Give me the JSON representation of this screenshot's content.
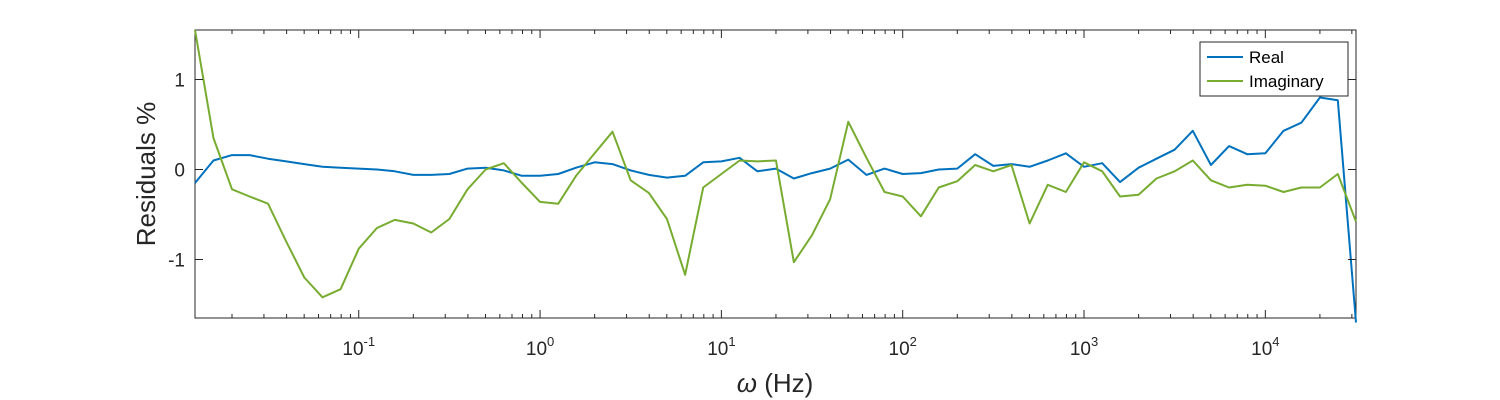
{
  "chart_data": {
    "type": "line",
    "xscale": "log",
    "xlim": [
      0.0125,
      31623
    ],
    "ylim": [
      -1.65,
      1.55
    ],
    "xlabel": "ω (Hz)",
    "xlabel_symbol": "ω",
    "xlabel_unit": "(Hz)",
    "ylabel": "Residuals %",
    "grid": false,
    "legend_position": "top-right",
    "x_ticks": [
      {
        "value": 0.1,
        "base": "10",
        "exp": "-1"
      },
      {
        "value": 1,
        "base": "10",
        "exp": "0"
      },
      {
        "value": 10,
        "base": "10",
        "exp": "1"
      },
      {
        "value": 100,
        "base": "10",
        "exp": "2"
      },
      {
        "value": 1000,
        "base": "10",
        "exp": "3"
      },
      {
        "value": 10000,
        "base": "10",
        "exp": "4"
      }
    ],
    "y_ticks": [
      {
        "value": 1,
        "label": "1"
      },
      {
        "value": 0,
        "label": "0"
      },
      {
        "value": -1,
        "label": "-1"
      }
    ],
    "series": [
      {
        "name": "Real",
        "color": "#0072BD",
        "x": [
          0.0125,
          0.0158,
          0.02,
          0.025,
          0.0316,
          0.0398,
          0.0501,
          0.0631,
          0.0794,
          0.1,
          0.126,
          0.158,
          0.2,
          0.251,
          0.316,
          0.398,
          0.501,
          0.631,
          0.794,
          1,
          1.26,
          1.58,
          2,
          2.51,
          3.16,
          3.98,
          5.01,
          6.31,
          7.94,
          10,
          12.6,
          15.8,
          20,
          25.1,
          31.6,
          39.8,
          50.1,
          63.1,
          79.4,
          100,
          126,
          158,
          200,
          251,
          316,
          398,
          501,
          631,
          794,
          1000,
          1260,
          1580,
          2000,
          2510,
          3160,
          3980,
          5010,
          6310,
          7940,
          10000,
          12600,
          15800,
          20000,
          25100,
          31623
        ],
        "y": [
          -0.15,
          0.1,
          0.16,
          0.16,
          0.12,
          0.09,
          0.06,
          0.03,
          0.02,
          0.01,
          0,
          -0.02,
          -0.06,
          -0.06,
          -0.05,
          0.01,
          0.02,
          -0.01,
          -0.07,
          -0.07,
          -0.05,
          0.02,
          0.08,
          0.06,
          -0.01,
          -0.06,
          -0.09,
          -0.07,
          0.08,
          0.09,
          0.13,
          -0.02,
          0.01,
          -0.1,
          -0.04,
          0.01,
          0.11,
          -0.06,
          0.01,
          -0.05,
          -0.04,
          0,
          0.01,
          0.17,
          0.04,
          0.06,
          0.03,
          0.1,
          0.18,
          0.03,
          0.07,
          -0.14,
          0.02,
          0.12,
          0.22,
          0.43,
          0.05,
          0.26,
          0.17,
          0.18,
          0.43,
          0.52,
          0.8,
          0.77,
          -1.7
        ]
      },
      {
        "name": "Imaginary",
        "color": "#77AC30",
        "x": [
          0.0125,
          0.0158,
          0.02,
          0.025,
          0.0316,
          0.0398,
          0.0501,
          0.0631,
          0.0794,
          0.1,
          0.126,
          0.158,
          0.2,
          0.251,
          0.316,
          0.398,
          0.501,
          0.631,
          0.794,
          1,
          1.26,
          1.58,
          2,
          2.51,
          3.16,
          3.98,
          5.01,
          6.31,
          7.94,
          10,
          12.6,
          15.8,
          20,
          25.1,
          31.6,
          39.8,
          50.1,
          63.1,
          79.4,
          100,
          126,
          158,
          200,
          251,
          316,
          398,
          501,
          631,
          794,
          1000,
          1260,
          1580,
          2000,
          2510,
          3160,
          3980,
          5010,
          6310,
          7940,
          10000,
          12600,
          15800,
          20000,
          25100,
          31623
        ],
        "y": [
          1.55,
          0.35,
          -0.22,
          -0.3,
          -0.38,
          -0.8,
          -1.2,
          -1.42,
          -1.33,
          -0.88,
          -0.65,
          -0.56,
          -0.6,
          -0.7,
          -0.55,
          -0.22,
          0,
          0.07,
          -0.15,
          -0.36,
          -0.38,
          -0.07,
          0.18,
          0.42,
          -0.12,
          -0.26,
          -0.55,
          -1.17,
          -0.2,
          -0.05,
          0.1,
          0.09,
          0.1,
          -1.03,
          -0.73,
          -0.33,
          0.53,
          0.13,
          -0.25,
          -0.3,
          -0.52,
          -0.2,
          -0.13,
          0.05,
          -0.02,
          0.05,
          -0.6,
          -0.17,
          -0.25,
          0.08,
          -0.02,
          -0.3,
          -0.28,
          -0.1,
          -0.02,
          0.1,
          -0.12,
          -0.2,
          -0.17,
          -0.18,
          -0.25,
          -0.2,
          -0.2,
          -0.05,
          -0.58
        ]
      }
    ]
  }
}
